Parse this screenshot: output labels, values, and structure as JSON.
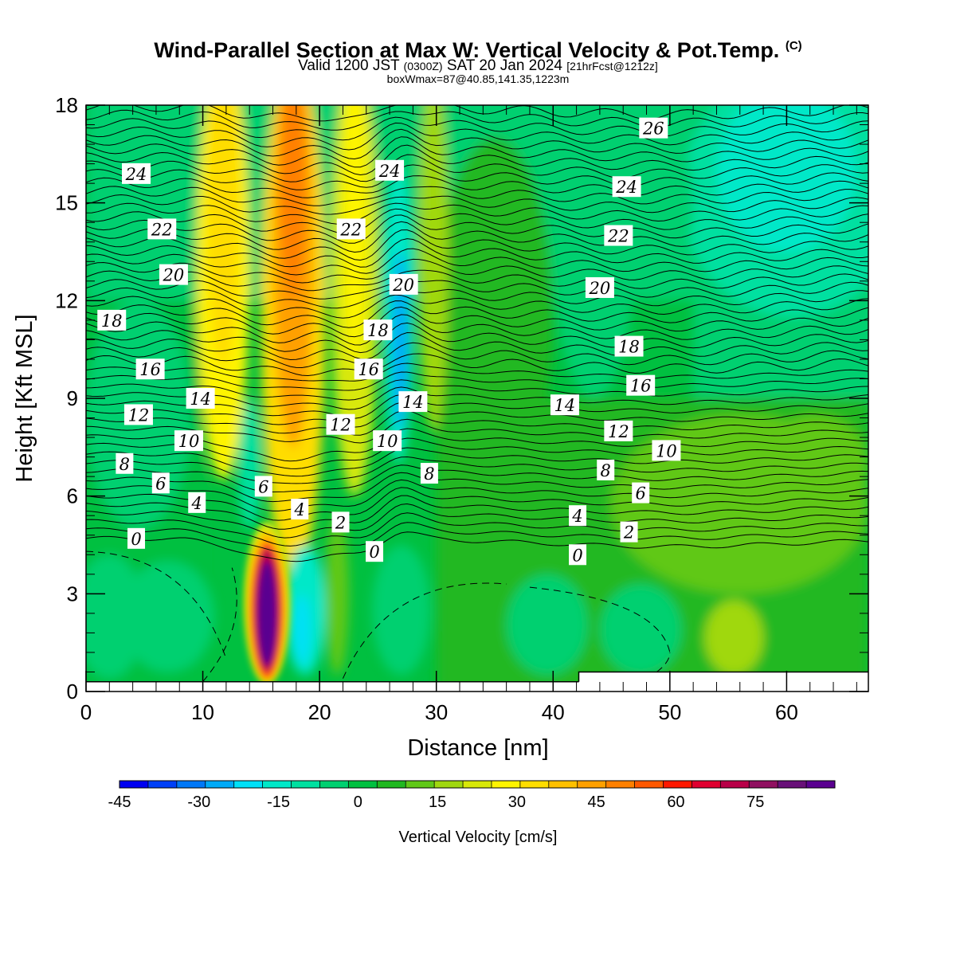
{
  "title": {
    "main": "Wind-Parallel Section at Max W: Vertical Velocity & Pot.Temp.",
    "copyright": "(C)",
    "valid_a": "Valid 1200 JST",
    "valid_b": "(0300Z)",
    "valid_c": "SAT 20 Jan 2024",
    "valid_d": "[21hrFcst@1212z]",
    "box": "boxWmax=87@40.85,141.35,1223m"
  },
  "chart_data": {
    "type": "heatmap",
    "xlabel": "Distance [nm]",
    "ylabel": "Height [Kft MSL]",
    "xlim": [
      0,
      67
    ],
    "ylim": [
      0,
      18
    ],
    "xticks": [
      0,
      10,
      20,
      30,
      40,
      50,
      60
    ],
    "yticks": [
      0,
      3,
      6,
      9,
      12,
      15,
      18
    ],
    "colorbar": {
      "label": "Vertical Velocity [cm/s]",
      "range": [
        -45,
        90
      ],
      "step": 5,
      "tick_values": [
        -45,
        -30,
        -15,
        0,
        15,
        30,
        45,
        60,
        75
      ],
      "tick_labels": [
        "-45",
        "-30",
        "-15",
        "0",
        "15",
        "30",
        "45",
        "60",
        "75"
      ],
      "colors": [
        "#0000f0",
        "#0040f8",
        "#0078f8",
        "#00aaf8",
        "#00e0f8",
        "#00e8c8",
        "#00e0a0",
        "#00d070",
        "#00c040",
        "#20b820",
        "#60c818",
        "#a0d810",
        "#d8e808",
        "#fff400",
        "#ffdd00",
        "#ffc000",
        "#ffa000",
        "#ff8000",
        "#ff5800",
        "#ff1800",
        "#e00030",
        "#b80048",
        "#901060",
        "#681078",
        "#5a0090"
      ]
    },
    "vertical_velocity_features": [
      {
        "x_center": 15.5,
        "height_range": [
          0.3,
          5.0
        ],
        "peak_value": 87,
        "sign": "updraft"
      },
      {
        "x_center": 17.5,
        "height_range": [
          3.5,
          18
        ],
        "peak_value": 35,
        "sign": "updraft"
      },
      {
        "x_center": 11.5,
        "height_range": [
          8,
          18
        ],
        "peak_value": 25,
        "sign": "updraft"
      },
      {
        "x_center": 23.0,
        "height_range": [
          6,
          18
        ],
        "peak_value": 20,
        "sign": "updraft"
      },
      {
        "x_center": 26.8,
        "height_range": [
          7.5,
          15
        ],
        "peak_value": -30,
        "sign": "downdraft"
      },
      {
        "x_center": 18.5,
        "height_range": [
          0.5,
          5
        ],
        "peak_value": -22,
        "sign": "downdraft"
      },
      {
        "x_center": 57.0,
        "height_range": [
          9,
          18
        ],
        "peak_value": -17,
        "sign": "downdraft"
      }
    ],
    "potential_temperature_labels": [
      {
        "text": "26",
        "x": 48.6,
        "y": 17.3
      },
      {
        "text": "24",
        "x": 4.3,
        "y": 15.9
      },
      {
        "text": "24",
        "x": 26.0,
        "y": 16.0
      },
      {
        "text": "24",
        "x": 46.3,
        "y": 15.5
      },
      {
        "text": "22",
        "x": 6.5,
        "y": 14.2
      },
      {
        "text": "22",
        "x": 22.7,
        "y": 14.2
      },
      {
        "text": "22",
        "x": 45.6,
        "y": 14.0
      },
      {
        "text": "20",
        "x": 7.5,
        "y": 12.8
      },
      {
        "text": "20",
        "x": 27.2,
        "y": 12.5
      },
      {
        "text": "20",
        "x": 44.0,
        "y": 12.4
      },
      {
        "text": "18",
        "x": 2.2,
        "y": 11.4
      },
      {
        "text": "18",
        "x": 25.0,
        "y": 11.1
      },
      {
        "text": "18",
        "x": 46.5,
        "y": 10.6
      },
      {
        "text": "16",
        "x": 5.5,
        "y": 9.9
      },
      {
        "text": "16",
        "x": 24.2,
        "y": 9.9
      },
      {
        "text": "16",
        "x": 47.5,
        "y": 9.4
      },
      {
        "text": "14",
        "x": 9.8,
        "y": 9.0
      },
      {
        "text": "14",
        "x": 28.0,
        "y": 8.9
      },
      {
        "text": "14",
        "x": 41.0,
        "y": 8.8
      },
      {
        "text": "12",
        "x": 4.5,
        "y": 8.5
      },
      {
        "text": "12",
        "x": 21.8,
        "y": 8.2
      },
      {
        "text": "12",
        "x": 45.6,
        "y": 8.0
      },
      {
        "text": "10",
        "x": 8.8,
        "y": 7.7
      },
      {
        "text": "10",
        "x": 25.8,
        "y": 7.7
      },
      {
        "text": "10",
        "x": 49.7,
        "y": 7.4
      },
      {
        "text": "8",
        "x": 3.3,
        "y": 7.0
      },
      {
        "text": "8",
        "x": 29.4,
        "y": 6.7
      },
      {
        "text": "8",
        "x": 44.5,
        "y": 6.8
      },
      {
        "text": "6",
        "x": 6.4,
        "y": 6.4
      },
      {
        "text": "6",
        "x": 15.2,
        "y": 6.3
      },
      {
        "text": "6",
        "x": 47.5,
        "y": 6.1
      },
      {
        "text": "4",
        "x": 9.5,
        "y": 5.8
      },
      {
        "text": "4",
        "x": 18.3,
        "y": 5.6
      },
      {
        "text": "4",
        "x": 42.1,
        "y": 5.4
      },
      {
        "text": "2",
        "x": 21.8,
        "y": 5.2
      },
      {
        "text": "2",
        "x": 46.5,
        "y": 4.9
      },
      {
        "text": "0",
        "x": 4.3,
        "y": 4.7
      },
      {
        "text": "0",
        "x": 24.7,
        "y": 4.3
      },
      {
        "text": "0",
        "x": 42.1,
        "y": 4.2
      }
    ],
    "terrain_top_kft": 0.3,
    "terrain_steps": [
      {
        "x_start": 42.2,
        "height": 0.6
      }
    ]
  }
}
